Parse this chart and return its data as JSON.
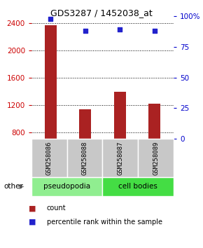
{
  "title": "GDS3287 / 1452038_at",
  "samples": [
    "GSM258086",
    "GSM258088",
    "GSM258087",
    "GSM258089"
  ],
  "counts": [
    2370,
    1130,
    1390,
    1220
  ],
  "percentiles": [
    98,
    88,
    89,
    88
  ],
  "groups": [
    {
      "label": "pseudopodia",
      "color": "#90EE90",
      "samples": [
        0,
        1
      ]
    },
    {
      "label": "cell bodies",
      "color": "#44DD44",
      "samples": [
        2,
        3
      ]
    }
  ],
  "ylim_left": [
    700,
    2500
  ],
  "yticks_left": [
    800,
    1200,
    1600,
    2000,
    2400
  ],
  "ylim_right": [
    0,
    100
  ],
  "yticks_right": [
    0,
    25,
    50,
    75,
    100
  ],
  "bar_color": "#AA2222",
  "dot_color": "#2222CC",
  "bg_color": "#FFFFFF",
  "sample_box_color": "#C8C8C8",
  "label_other": "other",
  "legend_count": "count",
  "legend_percentile": "percentile rank within the sample",
  "left_tick_color": "#CC0000",
  "right_tick_color": "#0000CC",
  "title_color": "#000000"
}
